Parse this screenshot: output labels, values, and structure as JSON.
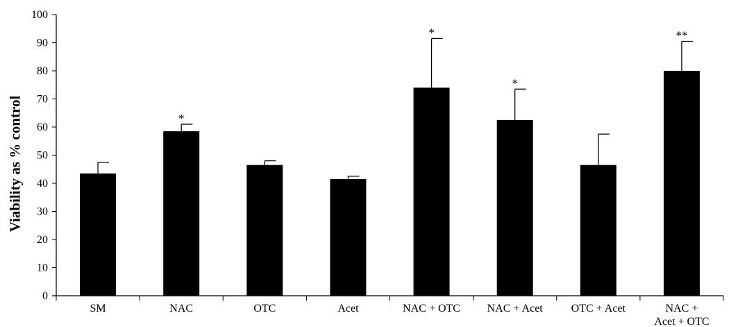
{
  "chart_data": {
    "type": "bar",
    "title": "",
    "xlabel": "",
    "ylabel": "Viability as % control",
    "ylim": [
      0,
      100
    ],
    "yticks": [
      0,
      10,
      20,
      30,
      40,
      50,
      60,
      70,
      80,
      90,
      100
    ],
    "grid": false,
    "categories": [
      [
        "SM"
      ],
      [
        "NAC"
      ],
      [
        "OTC"
      ],
      [
        "Acet"
      ],
      [
        "NAC + OTC"
      ],
      [
        "NAC + Acet"
      ],
      [
        "OTC + Acet"
      ],
      [
        "NAC +",
        "Acet + OTC"
      ]
    ],
    "values": [
      43.5,
      58.5,
      46.5,
      41.5,
      74,
      62.5,
      46.5,
      80
    ],
    "error_upper": [
      47.5,
      61,
      48,
      42.5,
      91.5,
      73.5,
      57.5,
      90.5
    ],
    "annotations": [
      "",
      "*",
      "",
      "",
      "*",
      "*",
      "",
      "**"
    ],
    "bar_color": "#000000"
  }
}
